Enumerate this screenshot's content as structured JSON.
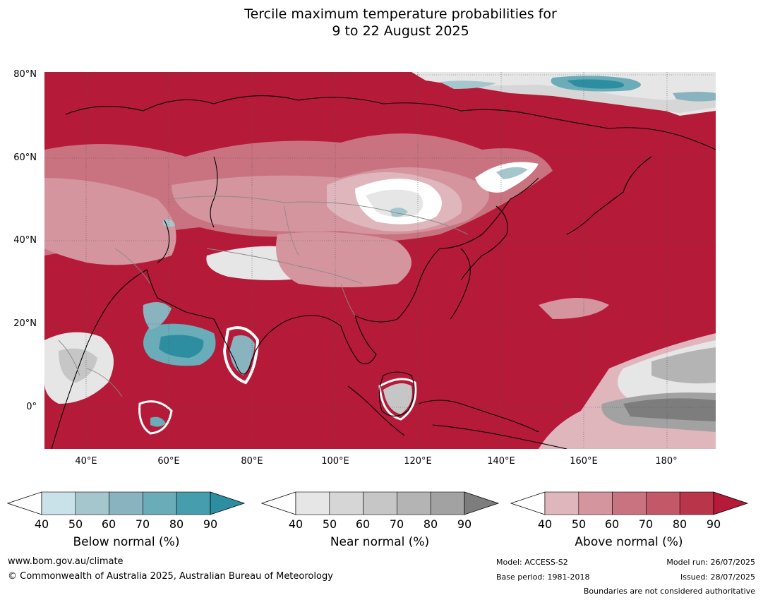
{
  "title_line1": "Tercile maximum temperature probabilities for",
  "title_line2": "9 to 22 August 2025",
  "map": {
    "lat_ticks": [
      "80°N",
      "60°N",
      "40°N",
      "20°N",
      "0°"
    ],
    "lon_ticks": [
      "40°E",
      "60°E",
      "80°E",
      "100°E",
      "120°E",
      "140°E",
      "160°E",
      "180°"
    ]
  },
  "legends": [
    {
      "title": "Below normal (%)",
      "ticks": [
        "40",
        "50",
        "60",
        "70",
        "80",
        "90"
      ],
      "colors": [
        "#c9e1e8",
        "#a6c6cd",
        "#89b3bf",
        "#6bacb9",
        "#459dae",
        "#2e8ea1"
      ]
    },
    {
      "title": "Near normal (%)",
      "ticks": [
        "40",
        "50",
        "60",
        "70",
        "80",
        "90"
      ],
      "colors": [
        "#e6e6e6",
        "#d6d6d6",
        "#c6c6c6",
        "#b4b4b4",
        "#a2a2a2",
        "#7d7d7d"
      ]
    },
    {
      "title": "Above normal (%)",
      "ticks": [
        "40",
        "50",
        "60",
        "70",
        "80",
        "90"
      ],
      "colors": [
        "#e0b6bd",
        "#d4959f",
        "#c97380",
        "#c25868",
        "#b8354a",
        "#b51a38"
      ]
    }
  ],
  "footer": {
    "url": "www.bom.gov.au/climate",
    "copyright": "© Commonwealth of Australia 2025, Australian Bureau of Meteorology",
    "model": "Model: ACCESS-S2",
    "base_period": "Base period: 1981-2018",
    "model_run": "Model run: 26/07/2025",
    "issued": "Issued: 28/07/2025",
    "disclaimer": "Boundaries are not considered authoritative"
  }
}
